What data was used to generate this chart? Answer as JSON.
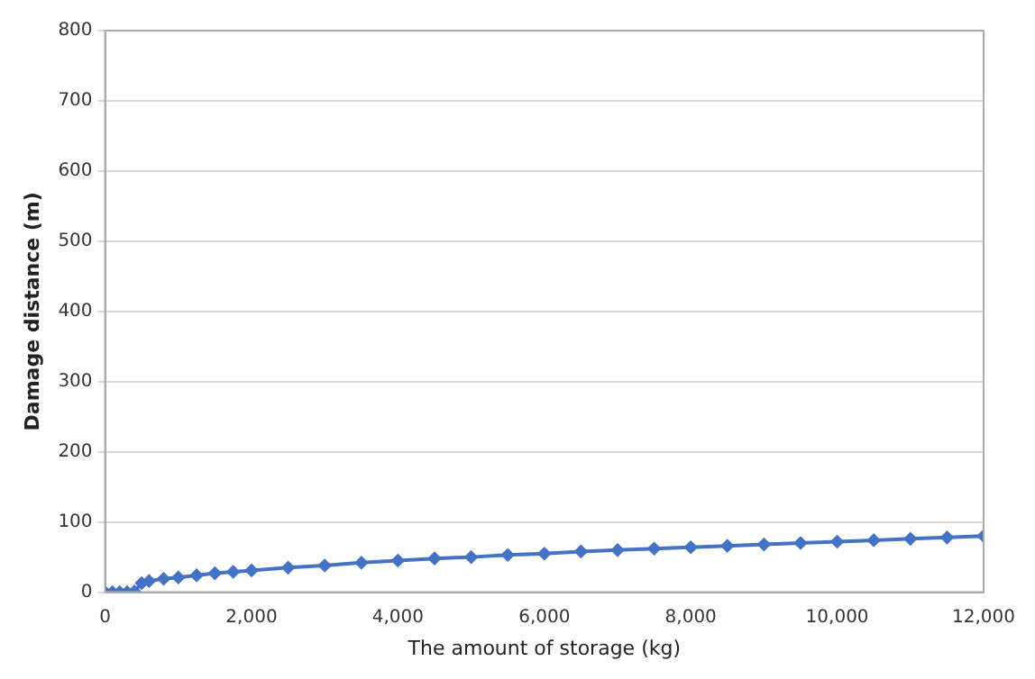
{
  "chart_data": {
    "type": "line",
    "xlabel": "The amount of storage (kg)",
    "ylabel": "Damage distance (m)",
    "x": [
      0,
      100,
      200,
      300,
      400,
      500,
      600,
      800,
      1000,
      1250,
      1500,
      1750,
      2000,
      2500,
      3000,
      3500,
      4000,
      4500,
      5000,
      5500,
      6000,
      6500,
      7000,
      7500,
      8000,
      8500,
      9000,
      9500,
      10000,
      10500,
      11000,
      11500,
      12000
    ],
    "series": [
      {
        "color": "#4472c4",
        "values": [
          0,
          0,
          0,
          0,
          1,
          13,
          16,
          19,
          21,
          24,
          27,
          29,
          31,
          35,
          38,
          42,
          45,
          48,
          50,
          53,
          55,
          58,
          60,
          62,
          64,
          66,
          68,
          70,
          72,
          74,
          76,
          78,
          80
        ]
      }
    ],
    "xlim": [
      0,
      12000
    ],
    "xticks": [
      {
        "value": 0,
        "label": "0"
      },
      {
        "value": 2000,
        "label": "2,000"
      },
      {
        "value": 4000,
        "label": "4,000"
      },
      {
        "value": 6000,
        "label": "6,000"
      },
      {
        "value": 8000,
        "label": "8,000"
      },
      {
        "value": 10000,
        "label": "10,000"
      },
      {
        "value": 12000,
        "label": "12,000"
      }
    ],
    "ylim": [
      0,
      800
    ],
    "yticks": [
      0,
      100,
      200,
      300,
      400,
      500,
      600,
      700,
      800
    ],
    "grid": "y",
    "legend": false,
    "marker": "diamond",
    "line_style": "solid"
  }
}
